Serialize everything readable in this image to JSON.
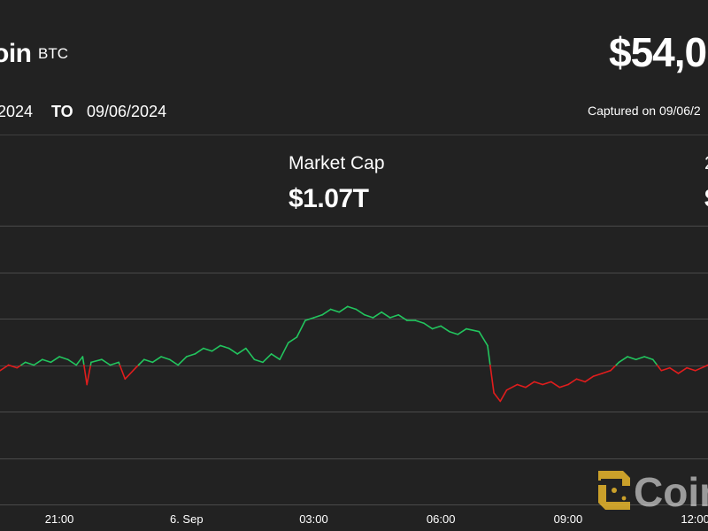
{
  "header": {
    "coin_name": "oin",
    "ticker": "BTC",
    "price": "$54,0",
    "date_from": "2024",
    "to_label": "TO",
    "date_to": "09/06/2024",
    "captured": "Captured on 09/06/2"
  },
  "stats": {
    "market_cap_label": "Market Cap",
    "market_cap_value": "$1.07T",
    "next_label_cut": "2",
    "next_value_cut": "$"
  },
  "watermark": {
    "text": "Coin"
  },
  "colors": {
    "background": "#222222",
    "grid": "#4a4a4a",
    "up": "#22c55e",
    "down": "#e11d1d",
    "watermark_gold": "#e8b62c"
  },
  "chart_data": {
    "type": "line",
    "x_unit": "hours since 6. Sep 00:00",
    "xlim": [
      -4.4,
      12.3
    ],
    "ylim": [
      0,
      1
    ],
    "baseline": 0.5,
    "grid": "horizontal",
    "x_ticks": [
      {
        "x": -3,
        "label": "21:00"
      },
      {
        "x": 0,
        "label": "6. Sep"
      },
      {
        "x": 3,
        "label": "03:00"
      },
      {
        "x": 6,
        "label": "06:00"
      },
      {
        "x": 9,
        "label": "09:00"
      },
      {
        "x": 12,
        "label": "12:00"
      }
    ],
    "series": [
      {
        "values": [
          [
            -4.4,
            0.48
          ],
          [
            -4.2,
            0.5
          ],
          [
            -4.0,
            0.49
          ],
          [
            -3.8,
            0.51
          ],
          [
            -3.6,
            0.5
          ],
          [
            -3.4,
            0.52
          ],
          [
            -3.2,
            0.51
          ],
          [
            -3.0,
            0.53
          ],
          [
            -2.8,
            0.52
          ],
          [
            -2.6,
            0.5
          ],
          [
            -2.45,
            0.53
          ],
          [
            -2.35,
            0.43
          ],
          [
            -2.25,
            0.51
          ],
          [
            -2.0,
            0.52
          ],
          [
            -1.8,
            0.5
          ],
          [
            -1.6,
            0.51
          ],
          [
            -1.45,
            0.45
          ],
          [
            -1.2,
            0.49
          ],
          [
            -1.0,
            0.52
          ],
          [
            -0.8,
            0.51
          ],
          [
            -0.6,
            0.53
          ],
          [
            -0.4,
            0.52
          ],
          [
            -0.2,
            0.5
          ],
          [
            0.0,
            0.53
          ],
          [
            0.2,
            0.54
          ],
          [
            0.4,
            0.56
          ],
          [
            0.6,
            0.55
          ],
          [
            0.8,
            0.57
          ],
          [
            1.0,
            0.56
          ],
          [
            1.2,
            0.54
          ],
          [
            1.4,
            0.56
          ],
          [
            1.6,
            0.52
          ],
          [
            1.8,
            0.51
          ],
          [
            2.0,
            0.54
          ],
          [
            2.2,
            0.52
          ],
          [
            2.4,
            0.58
          ],
          [
            2.6,
            0.6
          ],
          [
            2.8,
            0.66
          ],
          [
            3.0,
            0.67
          ],
          [
            3.2,
            0.68
          ],
          [
            3.4,
            0.7
          ],
          [
            3.6,
            0.69
          ],
          [
            3.8,
            0.71
          ],
          [
            4.0,
            0.7
          ],
          [
            4.2,
            0.68
          ],
          [
            4.4,
            0.67
          ],
          [
            4.6,
            0.69
          ],
          [
            4.8,
            0.67
          ],
          [
            5.0,
            0.68
          ],
          [
            5.2,
            0.66
          ],
          [
            5.4,
            0.66
          ],
          [
            5.6,
            0.65
          ],
          [
            5.8,
            0.63
          ],
          [
            6.0,
            0.64
          ],
          [
            6.2,
            0.62
          ],
          [
            6.4,
            0.61
          ],
          [
            6.6,
            0.63
          ],
          [
            6.9,
            0.62
          ],
          [
            7.1,
            0.57
          ],
          [
            7.25,
            0.4
          ],
          [
            7.4,
            0.37
          ],
          [
            7.55,
            0.41
          ],
          [
            7.8,
            0.43
          ],
          [
            8.0,
            0.42
          ],
          [
            8.2,
            0.44
          ],
          [
            8.4,
            0.43
          ],
          [
            8.6,
            0.44
          ],
          [
            8.8,
            0.42
          ],
          [
            9.0,
            0.43
          ],
          [
            9.2,
            0.45
          ],
          [
            9.4,
            0.44
          ],
          [
            9.6,
            0.46
          ],
          [
            9.8,
            0.47
          ],
          [
            10.0,
            0.48
          ],
          [
            10.2,
            0.51
          ],
          [
            10.4,
            0.53
          ],
          [
            10.6,
            0.52
          ],
          [
            10.8,
            0.53
          ],
          [
            11.0,
            0.52
          ],
          [
            11.2,
            0.48
          ],
          [
            11.4,
            0.49
          ],
          [
            11.6,
            0.47
          ],
          [
            11.8,
            0.49
          ],
          [
            12.0,
            0.48
          ],
          [
            12.3,
            0.5
          ]
        ]
      }
    ]
  }
}
